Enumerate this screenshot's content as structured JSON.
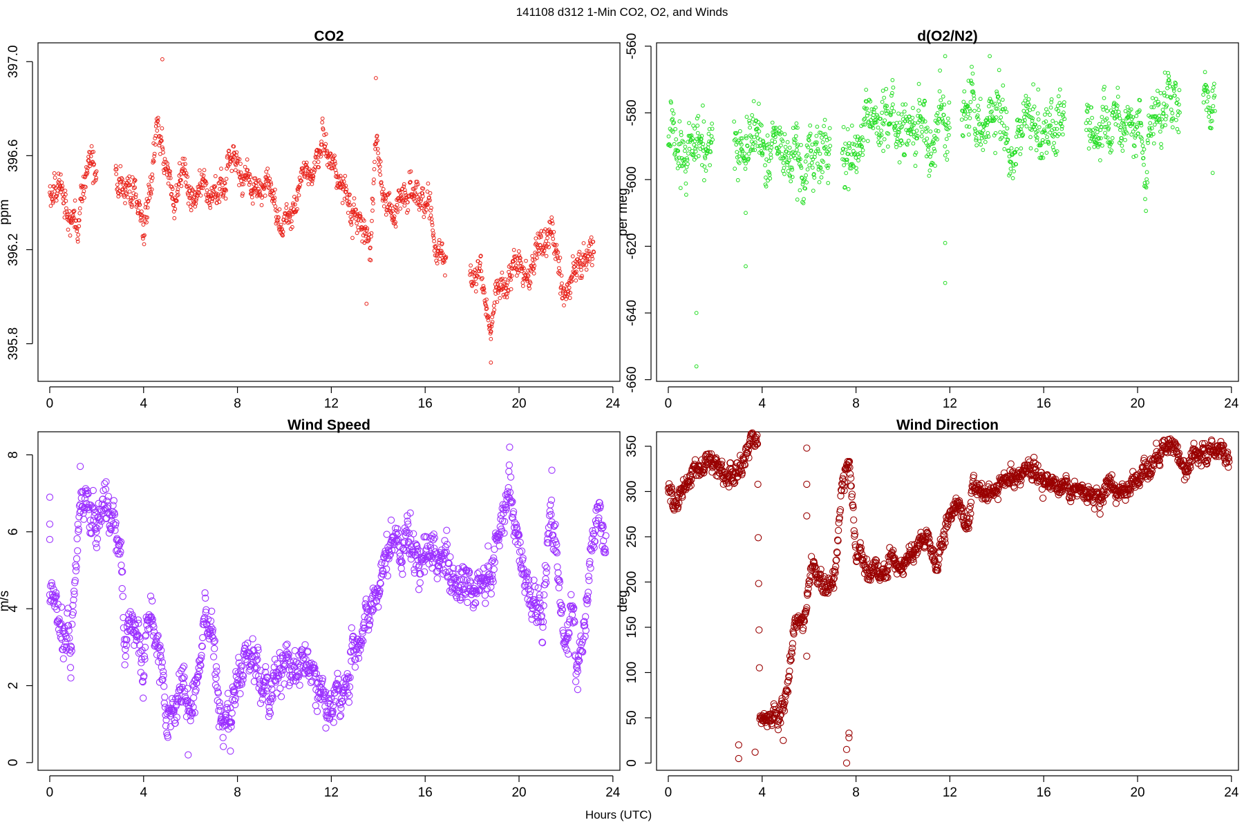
{
  "figure": {
    "title": "141108   d312   1-Min CO2, O2, and Winds",
    "xlabel": "Hours (UTC)"
  },
  "chart_data": [
    {
      "id": "co2",
      "type": "scatter",
      "title": "CO2",
      "xlabel": "",
      "ylabel": "ppm",
      "xlim": [
        -0.5,
        24.3
      ],
      "ylim": [
        395.64,
        397.08
      ],
      "xticks": [
        0,
        4,
        8,
        12,
        16,
        20,
        24
      ],
      "yticks": [
        395.8,
        396.2,
        396.6,
        397.0
      ],
      "ytick_labels": [
        "395.8",
        "396.2",
        "396.6",
        "397.0"
      ],
      "grid": false,
      "color": "#e8221a",
      "marker": "open-circle",
      "trend": [
        [
          0.0,
          396.45
        ],
        [
          0.5,
          396.46
        ],
        [
          0.8,
          396.34
        ],
        [
          1.2,
          396.3
        ],
        [
          1.4,
          396.42
        ],
        [
          1.7,
          396.58
        ],
        [
          1.9,
          396.52
        ],
        [
          2.0,
          396.5
        ],
        [
          2.8,
          396.5
        ],
        [
          3.2,
          396.42
        ],
        [
          3.6,
          396.5
        ],
        [
          3.9,
          396.38
        ],
        [
          4.0,
          396.3
        ],
        [
          4.3,
          396.45
        ],
        [
          4.6,
          396.72
        ],
        [
          4.8,
          396.62
        ],
        [
          5.0,
          396.58
        ],
        [
          5.3,
          396.44
        ],
        [
          5.7,
          396.55
        ],
        [
          6.0,
          396.45
        ],
        [
          6.4,
          396.44
        ],
        [
          6.8,
          396.4
        ],
        [
          7.2,
          396.48
        ],
        [
          7.6,
          396.52
        ],
        [
          8.0,
          396.55
        ],
        [
          8.3,
          396.52
        ],
        [
          8.7,
          396.48
        ],
        [
          9.2,
          396.45
        ],
        [
          9.6,
          396.4
        ],
        [
          10.0,
          396.28
        ],
        [
          10.4,
          396.38
        ],
        [
          10.8,
          396.55
        ],
        [
          11.2,
          396.52
        ],
        [
          11.6,
          396.68
        ],
        [
          11.9,
          396.62
        ],
        [
          12.6,
          396.42
        ],
        [
          13.0,
          396.38
        ],
        [
          13.4,
          396.22
        ],
        [
          13.7,
          396.3
        ],
        [
          13.9,
          396.7
        ],
        [
          14.2,
          396.45
        ],
        [
          14.6,
          396.38
        ],
        [
          15.0,
          396.4
        ],
        [
          15.4,
          396.48
        ],
        [
          15.8,
          396.38
        ],
        [
          16.2,
          396.42
        ],
        [
          16.5,
          396.2
        ],
        [
          16.9,
          396.15
        ],
        [
          17.9,
          396.05
        ],
        [
          18.4,
          396.08
        ],
        [
          18.8,
          395.9
        ],
        [
          19.2,
          396.1
        ],
        [
          19.6,
          396.05
        ],
        [
          20.0,
          396.12
        ],
        [
          20.4,
          396.1
        ],
        [
          20.8,
          396.22
        ],
        [
          21.3,
          396.28
        ],
        [
          21.7,
          396.15
        ],
        [
          22.0,
          396.05
        ],
        [
          22.6,
          396.1
        ],
        [
          22.9,
          396.18
        ],
        [
          23.2,
          396.22
        ]
      ],
      "gaps": [
        [
          2.0,
          2.8
        ],
        [
          16.9,
          17.9
        ]
      ],
      "spread": 0.035,
      "outliers": [
        [
          4.8,
          397.01
        ],
        [
          13.9,
          396.93
        ],
        [
          13.5,
          395.97
        ],
        [
          18.8,
          395.72
        ],
        [
          18.8,
          395.82
        ],
        [
          18.6,
          395.96
        ],
        [
          12.9,
          396.25
        ]
      ]
    },
    {
      "id": "o2",
      "type": "scatter",
      "title": "d(O2/N2)",
      "xlabel": "",
      "ylabel": "per meg",
      "xlim": [
        -0.5,
        24.3
      ],
      "ylim": [
        -660.5,
        -559
      ],
      "xticks": [
        0,
        4,
        8,
        12,
        16,
        20,
        24
      ],
      "yticks": [
        -660,
        -640,
        -620,
        -600,
        -580,
        -560
      ],
      "ytick_labels": [
        "-660",
        "-640",
        "-620",
        "-600",
        "-580",
        "-560"
      ],
      "grid": false,
      "color": "#22dd22",
      "marker": "open-circle",
      "trend": [
        [
          0.0,
          -589
        ],
        [
          1.0,
          -589
        ],
        [
          1.8,
          -590
        ],
        [
          2.8,
          -590
        ],
        [
          4.0,
          -590
        ],
        [
          5.0,
          -594
        ],
        [
          5.6,
          -596
        ],
        [
          6.5,
          -591
        ],
        [
          7.2,
          -590
        ],
        [
          8.0,
          -592
        ],
        [
          9.0,
          -588
        ],
        [
          10.0,
          -587
        ],
        [
          11.0,
          -585
        ],
        [
          11.9,
          -586
        ],
        [
          12.8,
          -584
        ],
        [
          14.0,
          -584
        ],
        [
          15.0,
          -585
        ],
        [
          16.0,
          -584
        ],
        [
          16.8,
          -582
        ],
        [
          17.8,
          -583
        ],
        [
          19.0,
          -582
        ],
        [
          20.0,
          -584
        ],
        [
          21.0,
          -580
        ],
        [
          21.8,
          -581
        ],
        [
          22.8,
          -578
        ],
        [
          23.3,
          -577
        ]
      ],
      "gaps": [
        [
          1.9,
          2.8
        ],
        [
          6.9,
          7.4
        ],
        [
          12.0,
          12.5
        ],
        [
          16.9,
          17.8
        ],
        [
          21.8,
          22.8
        ]
      ],
      "spread": 4.5,
      "outliers": [
        [
          1.2,
          -656
        ],
        [
          1.2,
          -640
        ],
        [
          3.3,
          -626
        ],
        [
          3.3,
          -610
        ],
        [
          11.8,
          -631
        ],
        [
          11.8,
          -619
        ],
        [
          11.8,
          -563
        ],
        [
          13.7,
          -563
        ],
        [
          23.2,
          -598
        ],
        [
          5.5,
          -606
        ]
      ]
    },
    {
      "id": "wind-speed",
      "type": "scatter",
      "title": "Wind Speed",
      "xlabel": "",
      "ylabel": "m/s",
      "xlim": [
        -0.5,
        24.3
      ],
      "ylim": [
        -0.2,
        8.6
      ],
      "xticks": [
        0,
        4,
        8,
        12,
        16,
        20,
        24
      ],
      "yticks": [
        0,
        2,
        4,
        6,
        8
      ],
      "ytick_labels": [
        "0",
        "2",
        "4",
        "6",
        "8"
      ],
      "grid": false,
      "color": "#9b30ff",
      "marker": "open-circle",
      "trend": [
        [
          0.0,
          4.6
        ],
        [
          0.3,
          4.4
        ],
        [
          0.6,
          3.6
        ],
        [
          0.9,
          3.0
        ],
        [
          1.2,
          6.0
        ],
        [
          1.6,
          6.6
        ],
        [
          2.0,
          6.2
        ],
        [
          2.3,
          7.0
        ],
        [
          2.6,
          6.3
        ],
        [
          3.0,
          5.6
        ],
        [
          3.2,
          3.0
        ],
        [
          3.4,
          3.6
        ],
        [
          3.8,
          2.8
        ],
        [
          4.0,
          2.6
        ],
        [
          4.2,
          4.4
        ],
        [
          4.5,
          3.2
        ],
        [
          4.8,
          2.6
        ],
        [
          5.0,
          1.5
        ],
        [
          5.3,
          1.2
        ],
        [
          5.6,
          2.0
        ],
        [
          6.0,
          1.0
        ],
        [
          6.3,
          2.5
        ],
        [
          6.6,
          3.5
        ],
        [
          6.9,
          3.6
        ],
        [
          7.2,
          1.2
        ],
        [
          7.5,
          0.8
        ],
        [
          7.8,
          1.5
        ],
        [
          8.2,
          2.3
        ],
        [
          8.6,
          2.5
        ],
        [
          9.0,
          2.2
        ],
        [
          9.4,
          1.7
        ],
        [
          9.8,
          2.0
        ],
        [
          10.3,
          2.3
        ],
        [
          10.8,
          2.2
        ],
        [
          11.3,
          1.8
        ],
        [
          11.8,
          1.6
        ],
        [
          12.3,
          2.0
        ],
        [
          12.8,
          2.7
        ],
        [
          13.2,
          3.0
        ],
        [
          13.6,
          4.0
        ],
        [
          14.0,
          4.5
        ],
        [
          14.4,
          5.6
        ],
        [
          14.8,
          6.2
        ],
        [
          15.2,
          5.6
        ],
        [
          15.6,
          5.4
        ],
        [
          16.0,
          5.6
        ],
        [
          16.5,
          5.0
        ],
        [
          17.0,
          4.8
        ],
        [
          17.5,
          4.6
        ],
        [
          18.0,
          4.4
        ],
        [
          18.5,
          4.2
        ],
        [
          19.0,
          5.8
        ],
        [
          19.5,
          6.8
        ],
        [
          19.9,
          6.2
        ],
        [
          20.3,
          4.5
        ],
        [
          20.7,
          4.2
        ],
        [
          21.0,
          3.5
        ],
        [
          21.3,
          6.8
        ],
        [
          21.6,
          5.5
        ],
        [
          21.9,
          3.2
        ],
        [
          22.2,
          4.4
        ],
        [
          22.5,
          2.4
        ],
        [
          22.8,
          3.5
        ],
        [
          23.1,
          6.2
        ],
        [
          23.5,
          6.2
        ],
        [
          23.7,
          5.8
        ]
      ],
      "gaps": [],
      "spread": 0.3,
      "outliers": [
        [
          0.0,
          6.9
        ],
        [
          0.0,
          6.2
        ],
        [
          0.0,
          5.8
        ],
        [
          0.9,
          2.2
        ],
        [
          1.3,
          7.7
        ],
        [
          2.4,
          7.3
        ],
        [
          19.6,
          8.2
        ],
        [
          21.4,
          7.6
        ],
        [
          22.5,
          1.9
        ],
        [
          5.9,
          0.2
        ],
        [
          7.7,
          0.3
        ]
      ]
    },
    {
      "id": "wind-direction",
      "type": "scatter",
      "title": "Wind Direction",
      "xlabel": "",
      "ylabel": "deg",
      "xlim": [
        -0.5,
        24.3
      ],
      "ylim": [
        -8,
        366
      ],
      "xticks": [
        0,
        4,
        8,
        12,
        16,
        20,
        24
      ],
      "yticks": [
        0,
        50,
        100,
        150,
        200,
        250,
        300,
        350
      ],
      "ytick_labels": [
        "0",
        "50",
        "100",
        "150",
        "200",
        "250",
        "300",
        "350"
      ],
      "grid": false,
      "color": "#990000",
      "marker": "open-circle",
      "trend": [
        [
          0.0,
          300
        ],
        [
          0.3,
          283
        ],
        [
          0.6,
          285
        ],
        [
          1.0,
          315
        ],
        [
          1.4,
          330
        ],
        [
          2.0,
          335
        ],
        [
          2.5,
          322
        ],
        [
          2.8,
          310
        ],
        [
          3.2,
          340
        ],
        [
          3.5,
          350
        ],
        [
          3.8,
          350
        ],
        [
          3.9,
          55
        ],
        [
          4.3,
          50
        ],
        [
          4.8,
          55
        ],
        [
          5.1,
          90
        ],
        [
          5.4,
          150
        ],
        [
          5.8,
          160
        ],
        [
          6.1,
          220
        ],
        [
          6.4,
          210
        ],
        [
          6.8,
          195
        ],
        [
          7.1,
          210
        ],
        [
          7.4,
          310
        ],
        [
          7.7,
          330
        ],
        [
          8.0,
          220
        ],
        [
          8.5,
          215
        ],
        [
          9.0,
          205
        ],
        [
          9.5,
          225
        ],
        [
          10.0,
          215
        ],
        [
          10.5,
          230
        ],
        [
          11.0,
          250
        ],
        [
          11.4,
          210
        ],
        [
          11.8,
          255
        ],
        [
          12.2,
          275
        ],
        [
          12.8,
          265
        ],
        [
          13.0,
          310
        ],
        [
          13.6,
          300
        ],
        [
          14.2,
          305
        ],
        [
          14.8,
          315
        ],
        [
          15.5,
          310
        ],
        [
          16.2,
          305
        ],
        [
          16.9,
          308
        ],
        [
          17.5,
          298
        ],
        [
          18.1,
          292
        ],
        [
          18.8,
          300
        ],
        [
          19.4,
          305
        ],
        [
          20.1,
          320
        ],
        [
          20.7,
          330
        ],
        [
          21.2,
          350
        ],
        [
          21.6,
          345
        ],
        [
          22.1,
          330
        ],
        [
          22.6,
          345
        ],
        [
          23.0,
          355
        ],
        [
          23.5,
          345
        ],
        [
          23.9,
          340
        ]
      ],
      "gaps": [],
      "spread": 6,
      "outliers": [
        [
          3.0,
          5
        ],
        [
          3.0,
          20
        ],
        [
          3.7,
          12
        ],
        [
          7.6,
          0
        ],
        [
          7.6,
          15
        ],
        [
          7.7,
          33
        ],
        [
          7.7,
          28
        ],
        [
          5.9,
          348
        ],
        [
          5.9,
          308
        ],
        [
          5.9,
          273
        ],
        [
          4.9,
          25
        ],
        [
          5.9,
          118
        ]
      ]
    }
  ]
}
